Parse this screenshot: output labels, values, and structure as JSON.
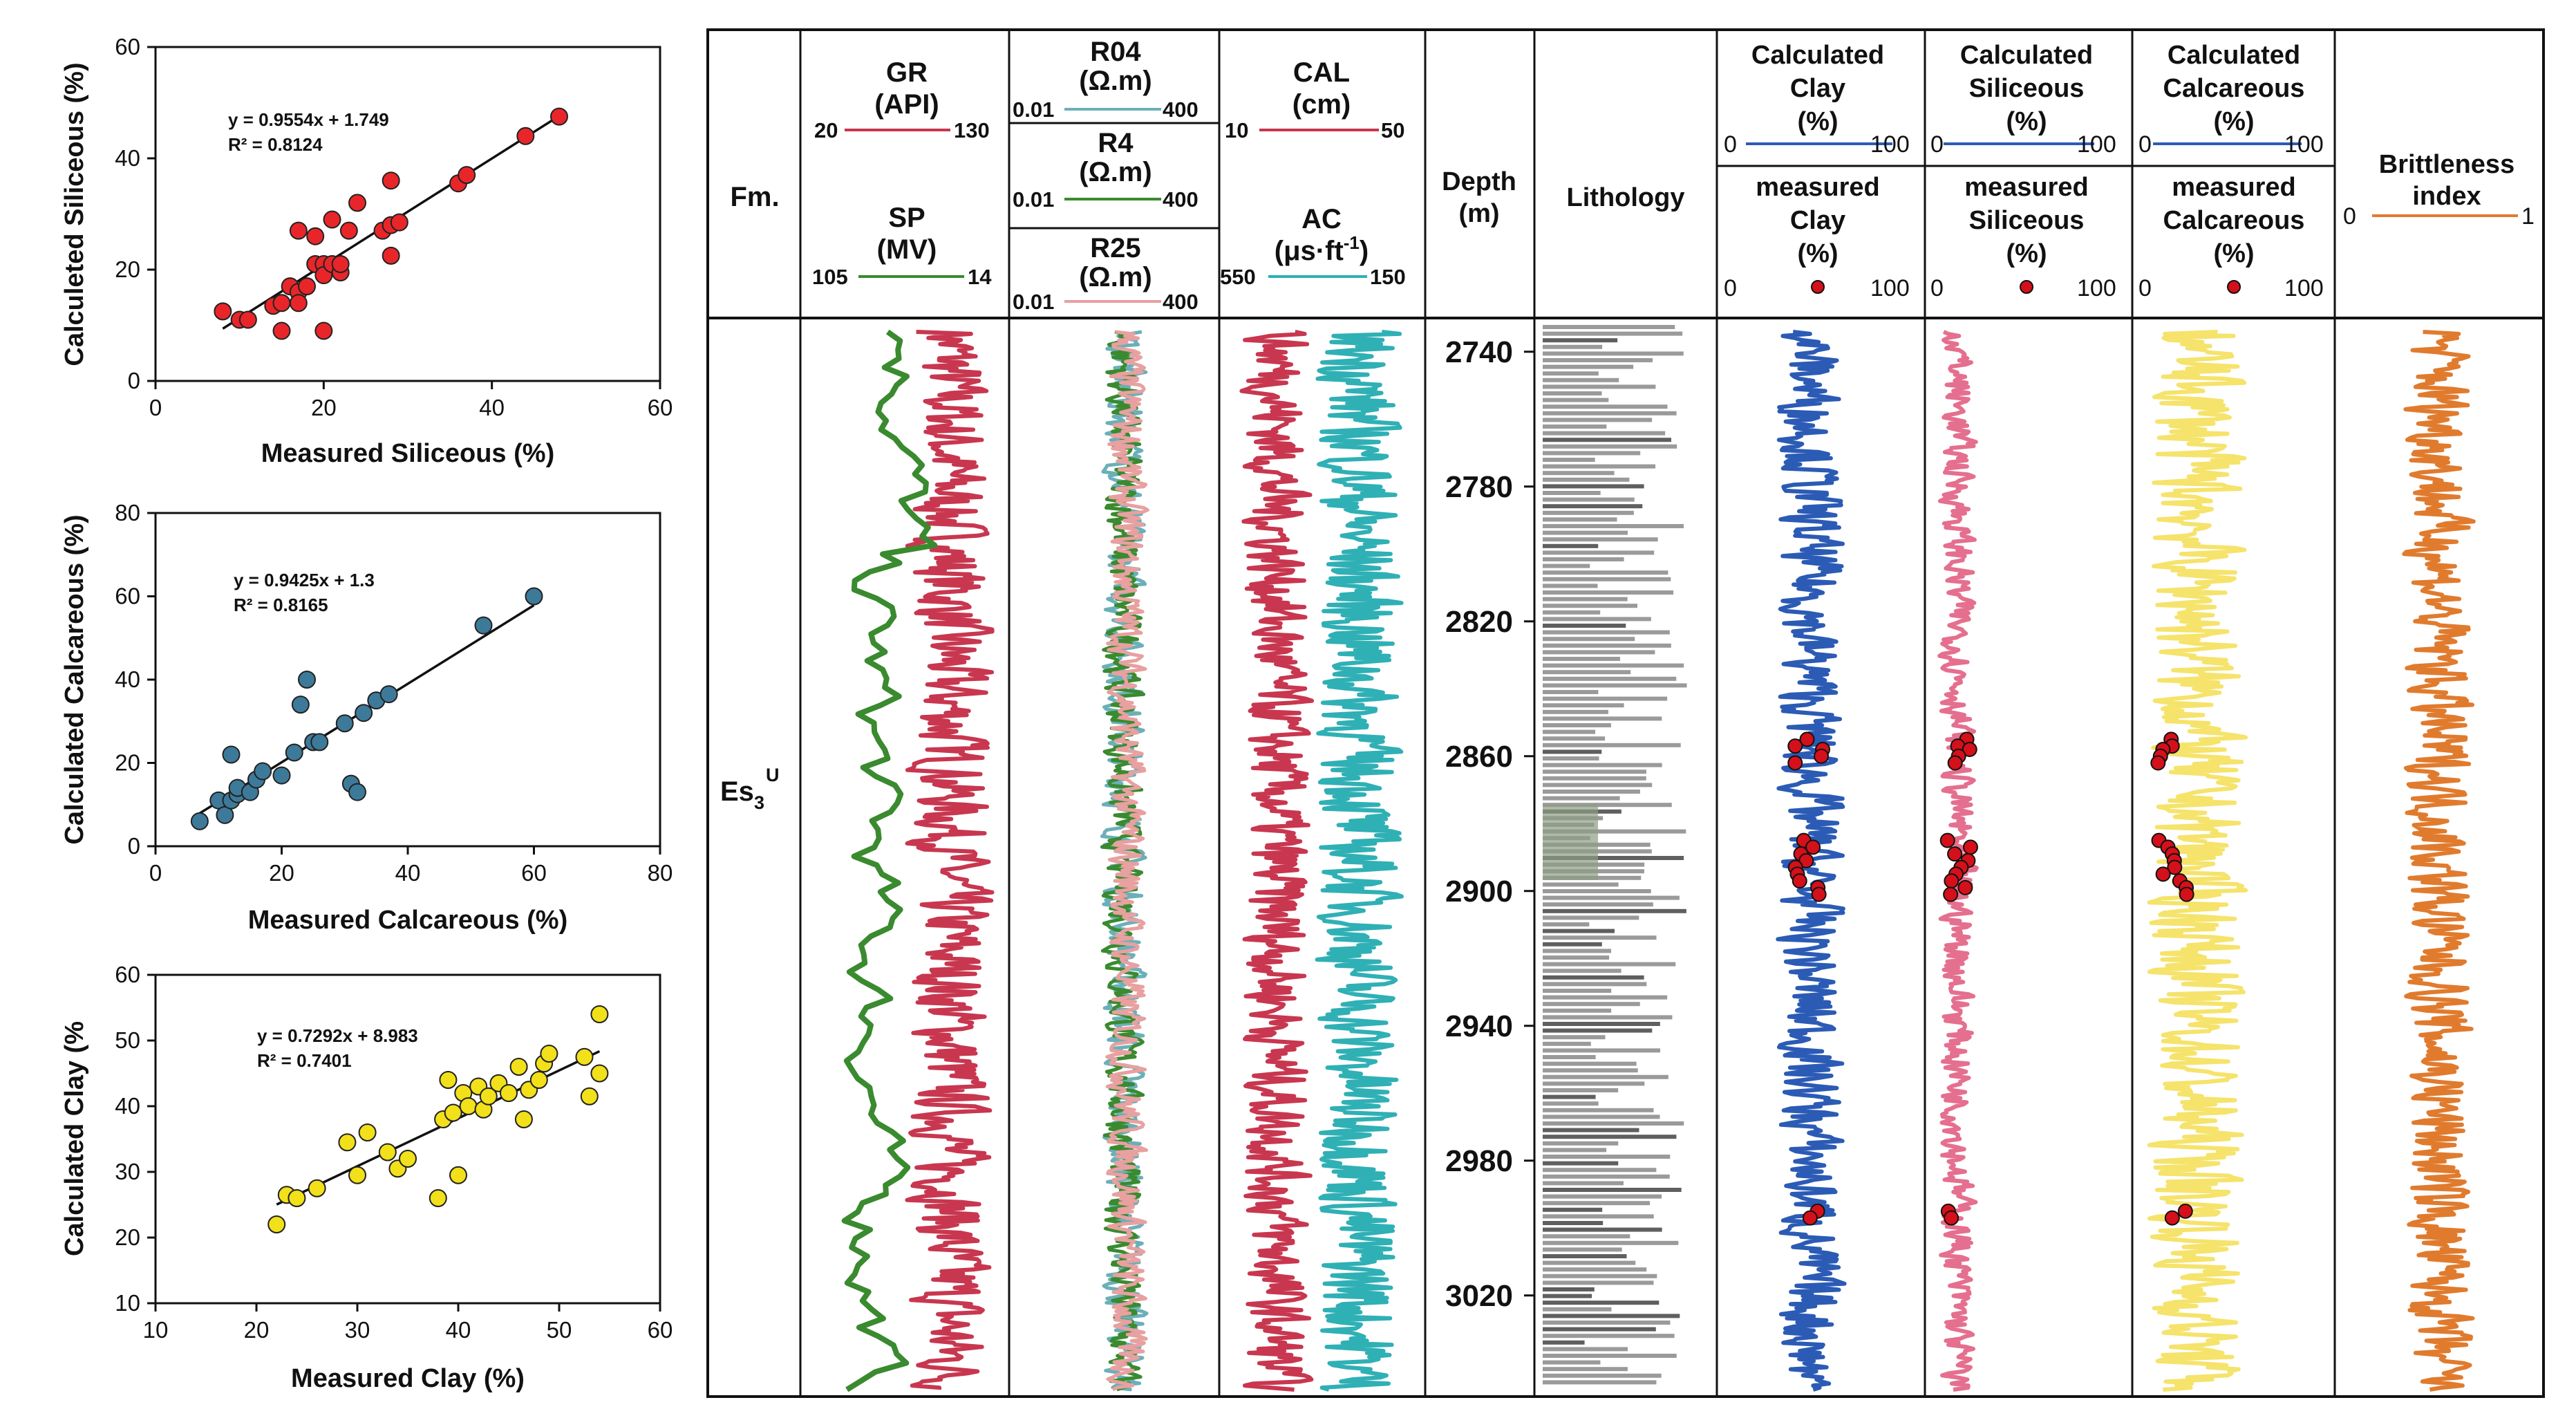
{
  "chart_data": [
    {
      "type": "scatter",
      "xlabel": "Measured Siliceous (%)",
      "ylabel": "Calculeted Siliceous (%)",
      "xlim": [
        0,
        60
      ],
      "ylim": [
        0,
        60
      ],
      "xticks": [
        0,
        20,
        40,
        60
      ],
      "yticks": [
        0,
        20,
        40,
        60
      ],
      "equation": "y = 0.9554x + 1.749",
      "r2": "R² = 0.8124",
      "marker_color": "#e8262a",
      "fit": {
        "slope": 0.9554,
        "intercept": 1.749,
        "x_range": [
          8,
          48
        ]
      },
      "points": [
        [
          8,
          12.5
        ],
        [
          10,
          11
        ],
        [
          11,
          11
        ],
        [
          14,
          13.5
        ],
        [
          15,
          14
        ],
        [
          15,
          9
        ],
        [
          16,
          17
        ],
        [
          17,
          16
        ],
        [
          17,
          14
        ],
        [
          17,
          27
        ],
        [
          18,
          17
        ],
        [
          19,
          21
        ],
        [
          19,
          26
        ],
        [
          20,
          21
        ],
        [
          20,
          19
        ],
        [
          20,
          9
        ],
        [
          21,
          21
        ],
        [
          22,
          19.5
        ],
        [
          21,
          29
        ],
        [
          22,
          21
        ],
        [
          23,
          27
        ],
        [
          24,
          32
        ],
        [
          27,
          27
        ],
        [
          28,
          28
        ],
        [
          28,
          36
        ],
        [
          28,
          22.5
        ],
        [
          29,
          28.5
        ],
        [
          36,
          35.5
        ],
        [
          37,
          37
        ],
        [
          44,
          44
        ],
        [
          48,
          47.5
        ]
      ]
    },
    {
      "type": "scatter",
      "xlabel": "Measured Calcareous (%)",
      "ylabel": "Calculated Calcareous (%)",
      "xlim": [
        0,
        80
      ],
      "ylim": [
        0,
        80
      ],
      "xticks": [
        0,
        20,
        40,
        60,
        80
      ],
      "yticks": [
        0,
        20,
        40,
        60,
        80
      ],
      "equation": "y = 0.9425x + 1.3",
      "r2": "R² = 0.8165",
      "marker_color": "#3d7a9a",
      "fit": {
        "slope": 0.9425,
        "intercept": 1.3,
        "x_range": [
          7,
          60
        ]
      },
      "points": [
        [
          7,
          6
        ],
        [
          10,
          11
        ],
        [
          11,
          7.5
        ],
        [
          12,
          11
        ],
        [
          12,
          22
        ],
        [
          13,
          12.5
        ],
        [
          13,
          14
        ],
        [
          15,
          13
        ],
        [
          16,
          16
        ],
        [
          17,
          18
        ],
        [
          20,
          17
        ],
        [
          22,
          22.5
        ],
        [
          23,
          34
        ],
        [
          24,
          40
        ],
        [
          25,
          25
        ],
        [
          26,
          25
        ],
        [
          30,
          29.5
        ],
        [
          31,
          15
        ],
        [
          32,
          13
        ],
        [
          33,
          32
        ],
        [
          35,
          35
        ],
        [
          37,
          36.5
        ],
        [
          52,
          53
        ],
        [
          60,
          60
        ]
      ]
    },
    {
      "type": "scatter",
      "xlabel": "Measured Clay (%)",
      "ylabel": "Calculated Clay (%",
      "xlim": [
        10,
        60
      ],
      "ylim": [
        10,
        60
      ],
      "xticks": [
        10,
        20,
        30,
        40,
        50,
        60
      ],
      "yticks": [
        10,
        20,
        30,
        40,
        50,
        60
      ],
      "equation": "y = 0.7292x + 8.983",
      "r2": "R² = 0.7401",
      "marker_color": "#f2e01a",
      "fit": {
        "slope": 0.7292,
        "intercept": 8.983,
        "x_range": [
          22,
          54
        ]
      },
      "points": [
        [
          22,
          22
        ],
        [
          23,
          26.5
        ],
        [
          24,
          26
        ],
        [
          26,
          27.5
        ],
        [
          29,
          34.5
        ],
        [
          30,
          29.5
        ],
        [
          31,
          36
        ],
        [
          33,
          33
        ],
        [
          34,
          30.5
        ],
        [
          35,
          32
        ],
        [
          38,
          26
        ],
        [
          38.5,
          38
        ],
        [
          39,
          44
        ],
        [
          39.5,
          39
        ],
        [
          40,
          29.5
        ],
        [
          40.5,
          42
        ],
        [
          41,
          40
        ],
        [
          42,
          43
        ],
        [
          42.5,
          39.5
        ],
        [
          43,
          41.5
        ],
        [
          44,
          43.5
        ],
        [
          45,
          42
        ],
        [
          46,
          46
        ],
        [
          46.5,
          38
        ],
        [
          47,
          42.5
        ],
        [
          48,
          44
        ],
        [
          48.5,
          46.5
        ],
        [
          49,
          48
        ],
        [
          52.5,
          47.5
        ],
        [
          53,
          41.5
        ],
        [
          54,
          54
        ],
        [
          54,
          45
        ]
      ]
    },
    {
      "type": "line",
      "title": "",
      "formation_header": "Fm.",
      "formation": "Es",
      "formation_sub": "3",
      "formation_sup": "U",
      "depth_header": [
        "Depth",
        "(m)"
      ],
      "depth_ticks": [
        2740,
        2780,
        2820,
        2860,
        2900,
        2940,
        2980,
        3020
      ],
      "depth_range": [
        2730,
        3050
      ],
      "lithology_header": "Lithology",
      "tracks": {
        "gr": {
          "name": "GR",
          "unit": "(API)",
          "min": "20",
          "max": "130",
          "color": "#c8374f"
        },
        "sp": {
          "name": "SP",
          "unit": "(MV)",
          "min": "105",
          "max": "14",
          "color": "#3a8a2f"
        },
        "r04": {
          "name": "R04",
          "unit": "(Ω.m)",
          "min": "0.01",
          "max": "400",
          "color": "#6bb0b8"
        },
        "r4": {
          "name": "R4",
          "unit": "(Ω.m)",
          "min": "0.01",
          "max": "400",
          "color": "#3a8a2f"
        },
        "r25": {
          "name": "R25",
          "unit": "(Ω.m)",
          "min": "0.01",
          "max": "400",
          "color": "#e8a0a0"
        },
        "cal": {
          "name": "CAL",
          "unit": "(cm)",
          "min": "10",
          "max": "50",
          "color": "#c8374f"
        },
        "ac": {
          "name": "AC",
          "unit": "(μs·ft",
          "unit_sup": "-1",
          "unit_end": ")",
          "min": "550",
          "max": "150",
          "color": "#2fb0b5"
        },
        "clay": {
          "calc_label": [
            "Calculated",
            "Clay",
            "(%)"
          ],
          "meas_label": [
            "measured",
            "Clay",
            "(%)"
          ],
          "min": "0",
          "max": "100",
          "line_color": "#2b5bb5"
        },
        "sil": {
          "calc_label": [
            "Calculated",
            "Siliceous",
            "(%)"
          ],
          "meas_label": [
            "measured",
            "Siliceous",
            "(%)"
          ],
          "min": "0",
          "max": "100",
          "line_color": "#e56f8e"
        },
        "calc": {
          "calc_label": [
            "Calculated",
            "Calcareous",
            "(%)"
          ],
          "meas_label": [
            "measured",
            "Calcareous",
            "(%)"
          ],
          "min": "0",
          "max": "100",
          "line_color": "#f5e36b"
        },
        "bi": {
          "label": [
            "Brittleness",
            "index"
          ],
          "min": "0",
          "max": "1",
          "color": "#e07b2e"
        }
      },
      "measured_dot_color": "#d4101a",
      "measured_samples_depth": [
        2855,
        2857,
        2858,
        2860,
        2862,
        2885,
        2887,
        2889,
        2891,
        2893,
        2895,
        2897,
        2899,
        2901,
        2995,
        2997
      ]
    }
  ]
}
